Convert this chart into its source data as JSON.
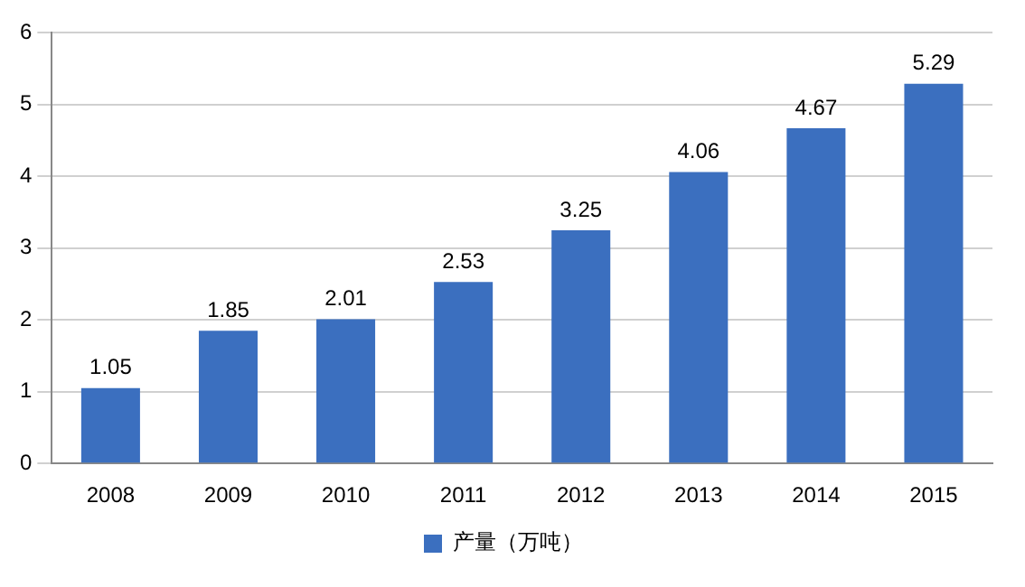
{
  "chart_data": {
    "type": "bar",
    "categories": [
      "2008",
      "2009",
      "2010",
      "2011",
      "2012",
      "2013",
      "2014",
      "2015"
    ],
    "series": [
      {
        "name": "产量（万吨）",
        "color": "#3b6fbf",
        "values": [
          1.05,
          1.85,
          2.01,
          2.53,
          3.25,
          4.06,
          4.67,
          5.29
        ]
      }
    ],
    "ylim": [
      0,
      6
    ],
    "yticks": [
      0,
      1,
      2,
      3,
      4,
      5,
      6
    ],
    "grid": "y",
    "legend": "bottom",
    "data_labels": true
  }
}
